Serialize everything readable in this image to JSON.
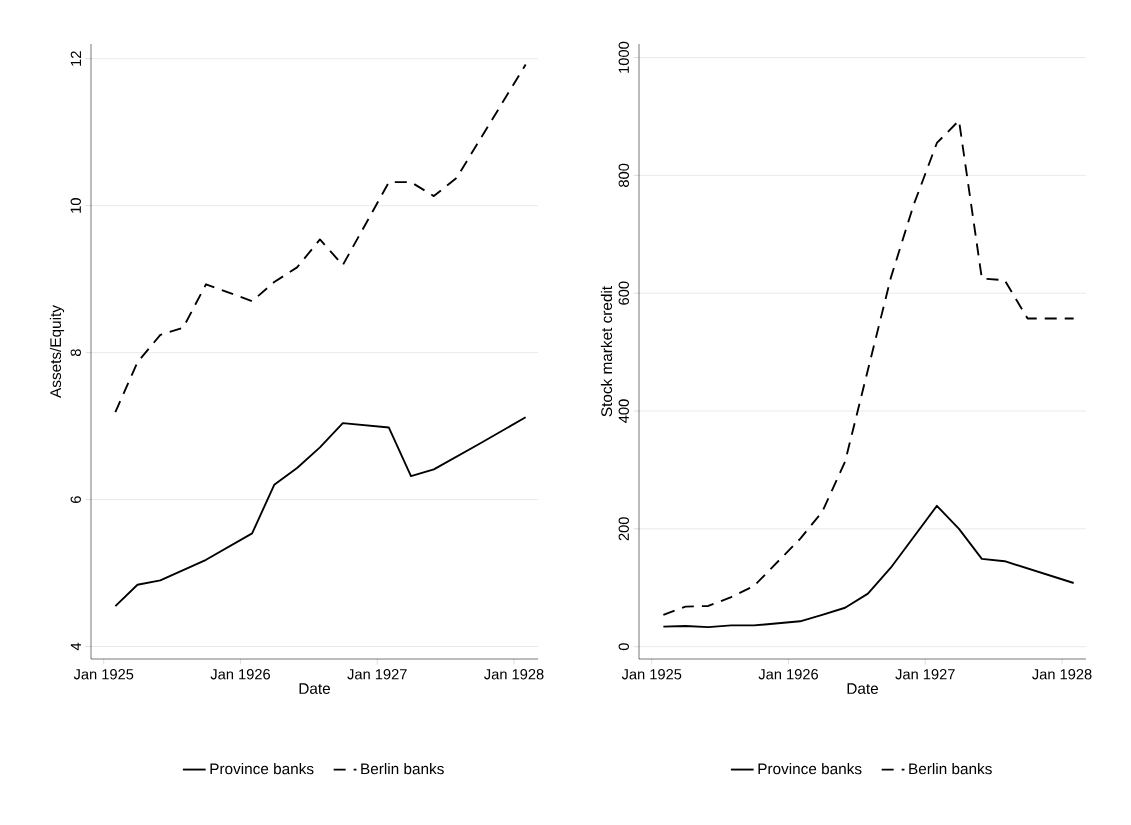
{
  "chart_data": [
    {
      "type": "line",
      "xlabel": "Date",
      "ylabel": "Assets/Equity",
      "grid": "y",
      "legend": "bottom",
      "xlim": [
        "1924-11-28",
        "1928-03-05"
      ],
      "ylim": [
        3.83,
        12.2
      ],
      "yticks": [
        4,
        6,
        8,
        10,
        12
      ],
      "xticks": [
        {
          "value": "1925-01",
          "label": "Jan 1925"
        },
        {
          "value": "1926-01",
          "label": "Jan 1926"
        },
        {
          "value": "1927-01",
          "label": "Jan 1927"
        },
        {
          "value": "1928-01",
          "label": "Jan 1928"
        }
      ],
      "series": [
        {
          "name": "Province banks",
          "color": "#000000",
          "line_style": "solid",
          "x": [
            "1925-02",
            "1925-04",
            "1925-06",
            "1925-10",
            "1926-02",
            "1926-04",
            "1926-06",
            "1926-08",
            "1926-10",
            "1927-02",
            "1927-04",
            "1927-06",
            "1927-10",
            "1928-02"
          ],
          "values": [
            4.55,
            4.84,
            4.9,
            5.18,
            5.54,
            6.2,
            6.43,
            6.71,
            7.04,
            6.98,
            6.32,
            6.41,
            6.76,
            7.12
          ]
        },
        {
          "name": "Berlin banks",
          "color": "#000000",
          "line_style": "dashed",
          "x": [
            "1925-02",
            "1925-04",
            "1925-06",
            "1925-08",
            "1925-10",
            "1926-02",
            "1926-04",
            "1926-06",
            "1926-08",
            "1926-10",
            "1927-02",
            "1927-04",
            "1927-06",
            "1927-08",
            "1928-02"
          ],
          "values": [
            7.19,
            7.87,
            8.24,
            8.34,
            8.93,
            8.7,
            8.96,
            9.16,
            9.54,
            9.19,
            10.32,
            10.32,
            10.13,
            10.38,
            11.92
          ]
        }
      ]
    },
    {
      "type": "line",
      "xlabel": "Date",
      "ylabel": "Stock market credit",
      "grid": "y",
      "legend": "bottom",
      "xlim": [
        "1924-11-28",
        "1928-03-05"
      ],
      "ylim": [
        -21,
        1023
      ],
      "yticks": [
        0,
        200,
        400,
        600,
        800,
        1000
      ],
      "xticks": [
        {
          "value": "1925-01",
          "label": "Jan 1925"
        },
        {
          "value": "1926-01",
          "label": "Jan 1926"
        },
        {
          "value": "1927-01",
          "label": "Jan 1927"
        },
        {
          "value": "1928-01",
          "label": "Jan 1928"
        }
      ],
      "series": [
        {
          "name": "Province banks",
          "color": "#000000",
          "line_style": "solid",
          "x": [
            "1925-02",
            "1925-04",
            "1925-06",
            "1925-08",
            "1925-10",
            "1926-02",
            "1926-04",
            "1926-06",
            "1926-08",
            "1926-10",
            "1927-02",
            "1927-04",
            "1927-06",
            "1927-08",
            "1928-02"
          ],
          "values": [
            34,
            35,
            33,
            36,
            36,
            43,
            54,
            66,
            90,
            134,
            239,
            200,
            149,
            145,
            108
          ]
        },
        {
          "name": "Berlin banks",
          "color": "#000000",
          "line_style": "dashed",
          "x": [
            "1925-02",
            "1925-04",
            "1925-06",
            "1925-08",
            "1925-10",
            "1926-02",
            "1926-04",
            "1926-06",
            "1926-08",
            "1926-10",
            "1926-12",
            "1927-02",
            "1927-04",
            "1927-06",
            "1927-08",
            "1927-10",
            "1928-02"
          ],
          "values": [
            54,
            68,
            69,
            84,
            103,
            183,
            229,
            314,
            470,
            626,
            750,
            855,
            893,
            625,
            622,
            557,
            557
          ]
        }
      ]
    }
  ]
}
